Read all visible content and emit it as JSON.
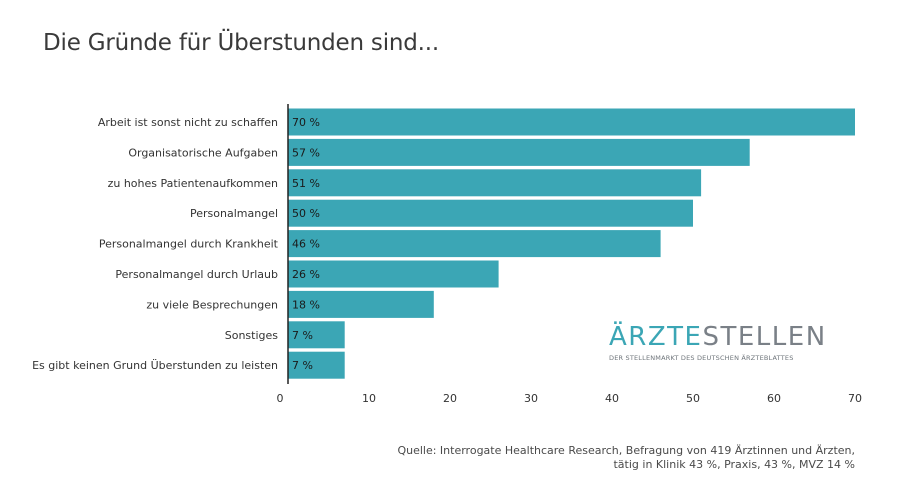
{
  "title": "Die Gründe für Überstunden sind...",
  "chart_data": {
    "type": "bar",
    "orientation": "horizontal",
    "title": "Die Gründe für Überstunden sind...",
    "categories": [
      "Arbeit ist sonst nicht zu schaffen",
      "Organisatorische Aufgaben",
      "zu hohes Patientenaufkommen",
      "Personalmangel",
      "Personalmangel durch Krankheit",
      "Personalmangel durch Urlaub",
      "zu viele Besprechungen",
      "Sonstiges",
      "Es gibt keinen Grund Überstunden zu leisten"
    ],
    "values": [
      70,
      57,
      51,
      50,
      46,
      26,
      18,
      7,
      7
    ],
    "value_labels": [
      "70 %",
      "57 %",
      "51 %",
      "50 %",
      "46 %",
      "26 %",
      "18 %",
      "7 %",
      "7 %"
    ],
    "xlim": [
      0,
      70
    ],
    "xticks": [
      0,
      10,
      20,
      30,
      40,
      50,
      60,
      70
    ],
    "grid": false,
    "bar_color": "#3ba6b5"
  },
  "logo": {
    "word_part1": "ÄRZTE",
    "word_part2": "STELLEN",
    "tagline": "DER STELLENMARKT DES DEUTSCHEN ÄRZTEBLATTES"
  },
  "source": {
    "line1": "Quelle: Interrogate Healthcare Research, Befragung von 419 Ärztinnen und Ärzten,",
    "line2": "tätig in Klinik 43 %, Praxis, 43 %, MVZ 14 %"
  }
}
